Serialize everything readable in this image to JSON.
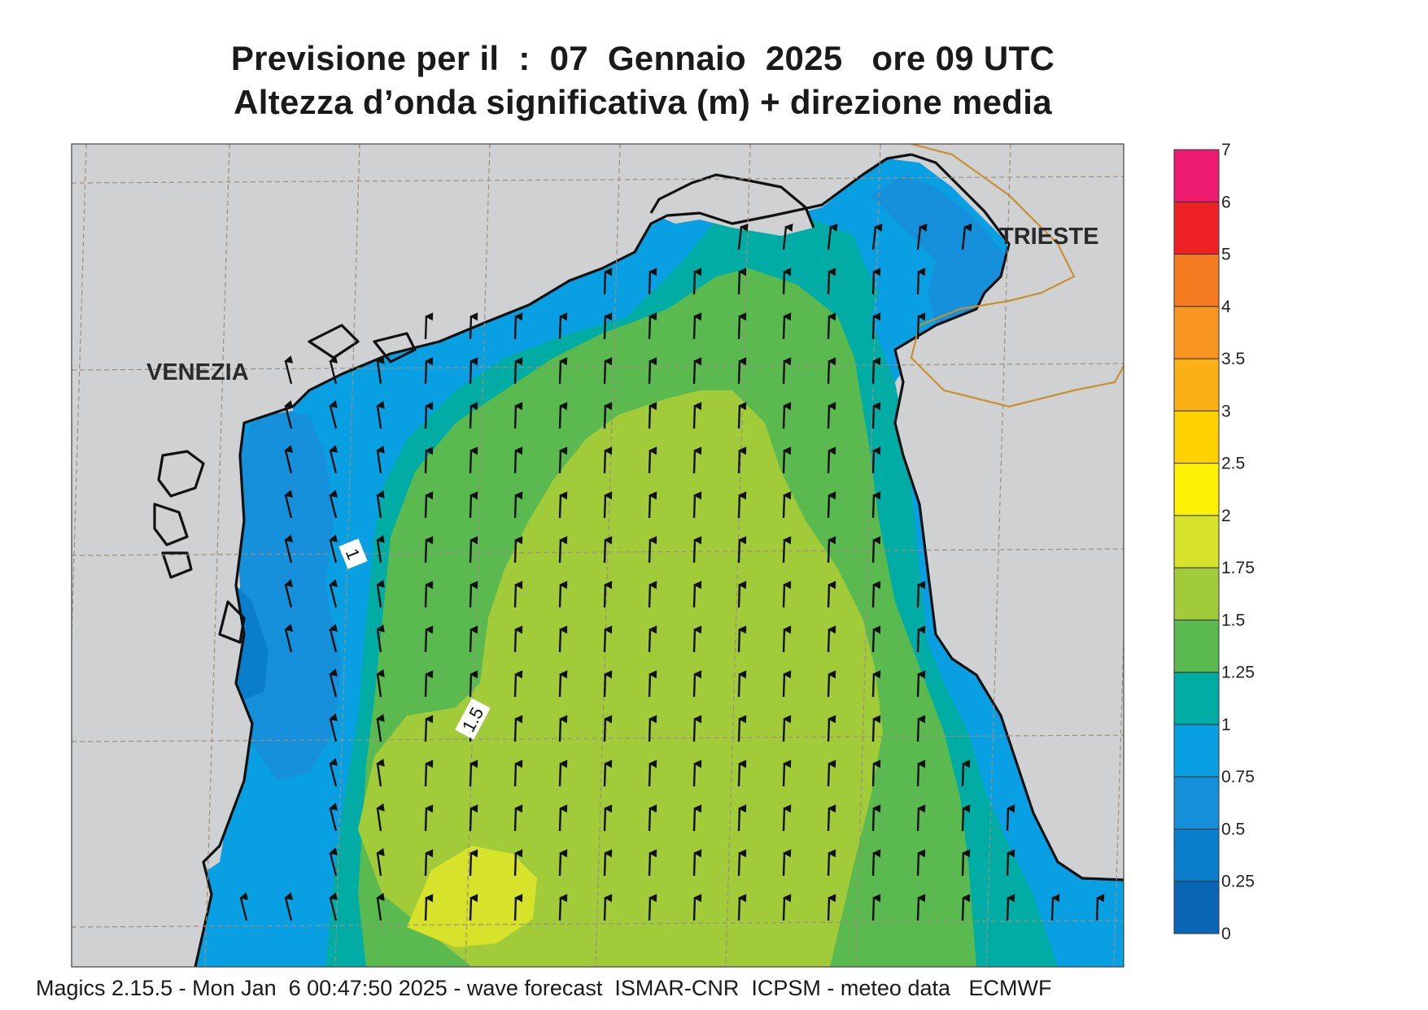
{
  "title": {
    "line1": "Previsione per il  :  07  Gennaio  2025   ore 09 UTC",
    "line2": "Altezza d’onda significativa (m) + direzione media"
  },
  "footer": "Magics 2.15.5 - Mon Jan  6 00:47:50 2025 - wave forecast  ISMAR-CNR  ICPSM - meteo data   ECMWF",
  "places": {
    "venezia": "VENEZIA",
    "trieste": "TRIESTE"
  },
  "contour_labels": [
    "1",
    "1.5"
  ],
  "legend": {
    "ticks": [
      "0",
      "0.25",
      "0.5",
      "0.75",
      "1",
      "1.25",
      "1.5",
      "1.75",
      "2",
      "2.5",
      "3",
      "3.5",
      "4",
      "5",
      "6",
      "7"
    ],
    "colors": [
      "#0866b5",
      "#0a7ecb",
      "#1690da",
      "#09a0e3",
      "#00aca4",
      "#5ab94f",
      "#a2cb3a",
      "#d7e22a",
      "#fdf205",
      "#fed201",
      "#fbb116",
      "#f99521",
      "#f47b20",
      "#ed2124",
      "#ec1b6f"
    ]
  },
  "colors": {
    "land": "#d0d1d3",
    "coast": "#111111",
    "border": "#c8902e",
    "grid": "#9c8f7f",
    "arrow": "#111111"
  },
  "arrow_direction": "north"
}
